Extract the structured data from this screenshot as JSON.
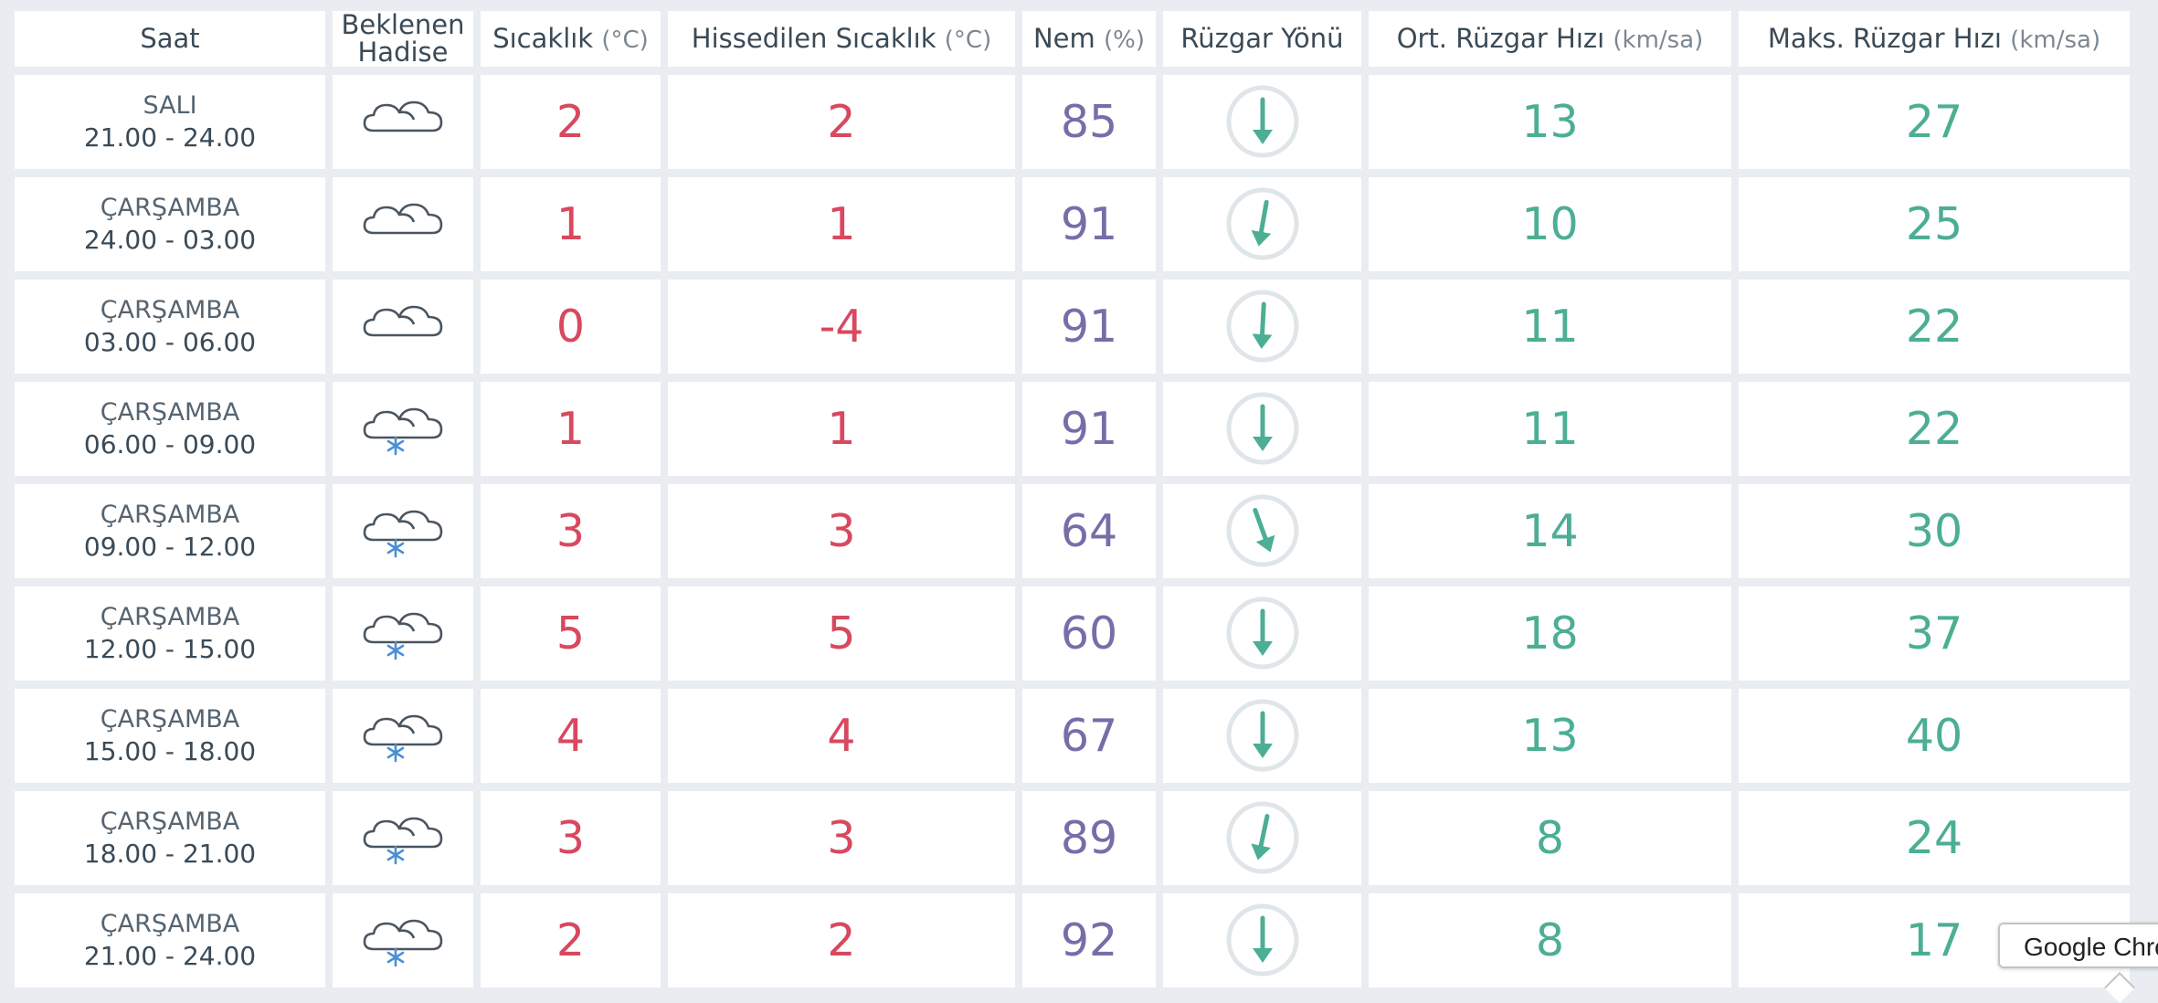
{
  "table": {
    "headers": {
      "saat": "Saat",
      "hadise_line1": "Beklenen",
      "hadise_line2": "Hadise",
      "sicaklik": "Sıcaklık",
      "sicaklik_unit": "(°C)",
      "hissedilen": "Hissedilen Sıcaklık",
      "hissedilen_unit": "(°C)",
      "nem": "Nem",
      "nem_unit": "(%)",
      "ruzgar_yonu": "Rüzgar Yönü",
      "ort_ruzgar": "Ort. Rüzgar Hızı",
      "ort_ruzgar_unit": "(km/sa)",
      "maks_ruzgar": "Maks. Rüzgar Hızı",
      "maks_ruzgar_unit": "(km/sa)"
    },
    "rows": [
      {
        "day": "SALI",
        "time": "21.00 - 24.00",
        "icon": "cloudy-icon",
        "temp": "2",
        "feels": "2",
        "humidity": "85",
        "wind_dir_deg": 0,
        "wind_avg": "13",
        "wind_max": "27"
      },
      {
        "day": "ÇARŞAMBA",
        "time": "24.00 - 03.00",
        "icon": "cloudy-icon",
        "temp": "1",
        "feels": "1",
        "humidity": "91",
        "wind_dir_deg": 10,
        "wind_avg": "10",
        "wind_max": "25"
      },
      {
        "day": "ÇARŞAMBA",
        "time": "03.00 - 06.00",
        "icon": "cloudy-icon",
        "temp": "0",
        "feels": "-4",
        "humidity": "91",
        "wind_dir_deg": 3,
        "wind_avg": "11",
        "wind_max": "22"
      },
      {
        "day": "ÇARŞAMBA",
        "time": "06.00 - 09.00",
        "icon": "snow-icon",
        "temp": "1",
        "feels": "1",
        "humidity": "91",
        "wind_dir_deg": 0,
        "wind_avg": "11",
        "wind_max": "22"
      },
      {
        "day": "ÇARŞAMBA",
        "time": "09.00 - 12.00",
        "icon": "snow-icon",
        "temp": "3",
        "feels": "3",
        "humidity": "64",
        "wind_dir_deg": -20,
        "wind_avg": "14",
        "wind_max": "30"
      },
      {
        "day": "ÇARŞAMBA",
        "time": "12.00 - 15.00",
        "icon": "snow-icon",
        "temp": "5",
        "feels": "5",
        "humidity": "60",
        "wind_dir_deg": 0,
        "wind_avg": "18",
        "wind_max": "37"
      },
      {
        "day": "ÇARŞAMBA",
        "time": "15.00 - 18.00",
        "icon": "snow-icon",
        "temp": "4",
        "feels": "4",
        "humidity": "67",
        "wind_dir_deg": 0,
        "wind_avg": "13",
        "wind_max": "40"
      },
      {
        "day": "ÇARŞAMBA",
        "time": "18.00 - 21.00",
        "icon": "snow-icon",
        "temp": "3",
        "feels": "3",
        "humidity": "89",
        "wind_dir_deg": 12,
        "wind_avg": "8",
        "wind_max": "24"
      },
      {
        "day": "ÇARŞAMBA",
        "time": "21.00 - 24.00",
        "icon": "snow-icon",
        "temp": "2",
        "feels": "2",
        "humidity": "92",
        "wind_dir_deg": 0,
        "wind_avg": "8",
        "wind_max": "17"
      }
    ]
  },
  "tooltip": {
    "text": "Google Chrome"
  },
  "colors": {
    "temperature": "#d8485f",
    "humidity": "#786da8",
    "wind": "#4cae94",
    "icon_stroke": "#4a5560",
    "snowflake": "#4a8fd6"
  }
}
